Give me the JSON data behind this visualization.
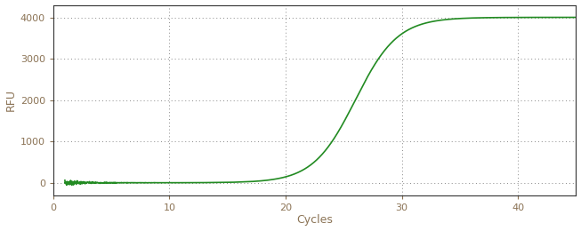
{
  "title": "",
  "xlabel": "Cycles",
  "ylabel": "RFU",
  "xlim": [
    0,
    45
  ],
  "ylim": [
    -300,
    4300
  ],
  "yticks": [
    0,
    1000,
    2000,
    3000,
    4000
  ],
  "xticks": [
    0,
    10,
    20,
    30,
    40
  ],
  "line_color": "#228B22",
  "line_width": 1.2,
  "background_color": "#ffffff",
  "grid_color": "#888888",
  "sigmoid_L": 4000,
  "sigmoid_k": 0.55,
  "sigmoid_x0": 26.0,
  "x_start": 1,
  "x_end": 45,
  "noise_amplitude": 35,
  "noise_seed": 7,
  "label_color": "#8B7355",
  "tick_color": "#8B7355",
  "spine_color": "#333333",
  "figsize": [
    6.53,
    2.6
  ],
  "dpi": 100
}
